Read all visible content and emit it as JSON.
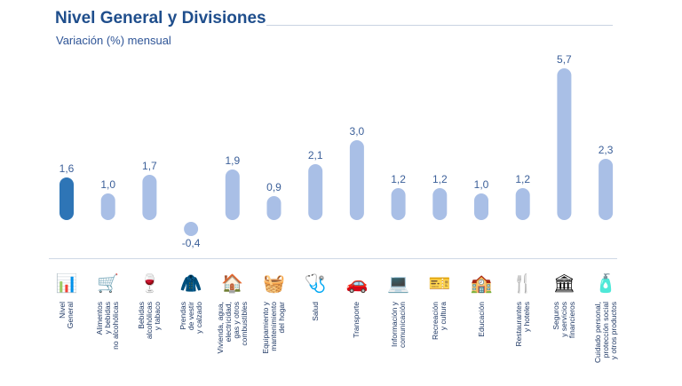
{
  "header": {
    "title": "Nivel General y Divisiones",
    "subtitle": "Variación (%) mensual"
  },
  "colors": {
    "highlight": "#2e75b6",
    "bar": "#a9bfe6",
    "value_text": "#3b5f99"
  },
  "chart_data": {
    "type": "bar",
    "title": "Nivel General y Divisiones",
    "subtitle": "Variación (%) mensual",
    "categories": [
      "Nivel General",
      "Alimentos y bebidas no alcohólicas",
      "Bebidas alcohólicas y tabaco",
      "Prendas de vestir y calzado",
      "Vivienda, agua, electricidad, gas y otros combustibles",
      "Equipamiento y mantenimiento del hogar",
      "Salud",
      "Transporte",
      "Información y comunicación",
      "Recreación y cultura",
      "Educación",
      "Restaurantes y hoteles",
      "Seguros y servicios financieros",
      "Cuidado personal, protección social y otros productos"
    ],
    "category_lines": [
      "Nivel\nGeneral",
      "Alimentos\ny bebidas\nno alcohólicas",
      "Bebidas\nalcohólicas\ny tabaco",
      "Prendas\nde vestir\ny calzado",
      "Vivienda, agua,\nelectricidad,\ngas y otros\ncombustibles",
      "Equipamiento y\nmantenimiento\ndel hogar",
      "Salud",
      "Transporte",
      "Información y\ncomunicación",
      "Recreación\ny cultura",
      "Educación",
      "Restaurantes\ny hoteles",
      "Seguros\ny servicios\nfinancieros",
      "Cuidado personal,\nprotección social\ny otros productos"
    ],
    "values": [
      1.6,
      1.0,
      1.7,
      -0.4,
      1.9,
      0.9,
      2.1,
      3.0,
      1.2,
      1.2,
      1.0,
      1.2,
      5.7,
      2.3
    ],
    "value_labels": [
      "1,6",
      "1,0",
      "1,7",
      "-0,4",
      "1,9",
      "0,9",
      "2,1",
      "3,0",
      "1,2",
      "1,2",
      "1,0",
      "1,2",
      "5,7",
      "2,3"
    ],
    "highlight_index": 0,
    "icons": [
      "chart-icon",
      "groceries-icon",
      "bottle-icon",
      "jacket-icon",
      "house-icon",
      "appliance-icon",
      "doctor-icon",
      "car-plane-icon",
      "computer-icon",
      "ticket-icon",
      "school-icon",
      "cutlery-icon",
      "bank-icon",
      "personal-care-icon"
    ],
    "ylim": [
      -0.4,
      5.7
    ],
    "grid": false,
    "legend": "none",
    "xlabel": "",
    "ylabel": ""
  }
}
